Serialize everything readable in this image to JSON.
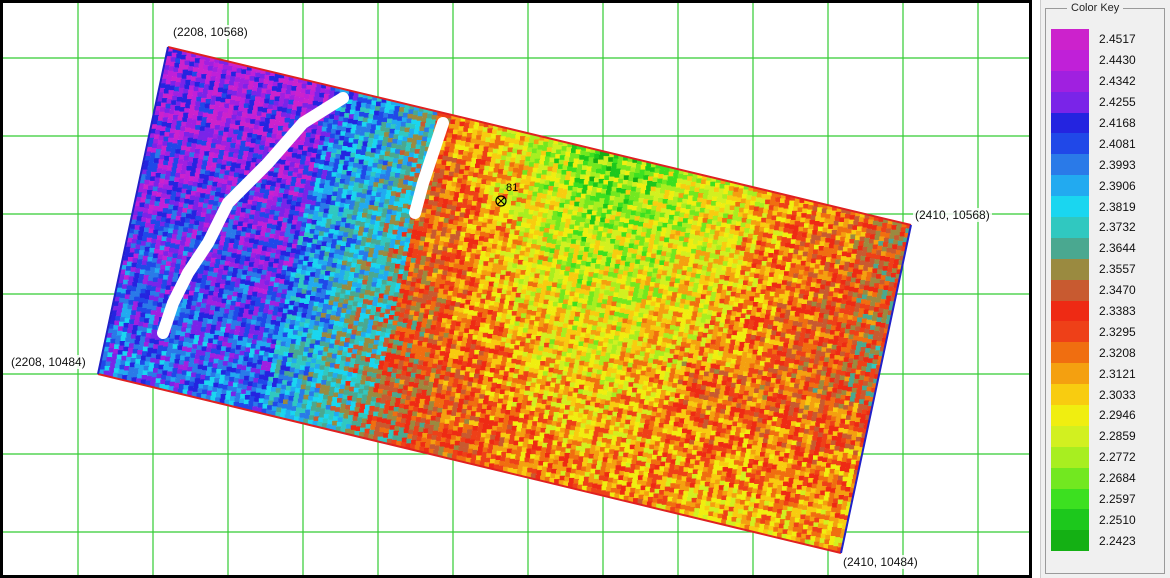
{
  "map": {
    "coords": [
      {
        "id": "nw",
        "label": "(2208, 10568)"
      },
      {
        "id": "ne",
        "label": "(2410, 10568)"
      },
      {
        "id": "sw",
        "label": "(2208, 10484)"
      },
      {
        "id": "se",
        "label": "(2410, 10484)"
      }
    ],
    "marker_label": "81",
    "grid_color": "#33cc33",
    "top_edge_color": "#e02020",
    "side_edge_color": "#2020c8"
  },
  "color_key": {
    "title": "Color Key",
    "entries": [
      {
        "value": "2.4517",
        "color": "#cc22cc"
      },
      {
        "value": "2.4430",
        "color": "#c020d8"
      },
      {
        "value": "2.4342",
        "color": "#a020e0"
      },
      {
        "value": "2.4255",
        "color": "#7a24e8"
      },
      {
        "value": "2.4168",
        "color": "#2424e0"
      },
      {
        "value": "2.4081",
        "color": "#2048e8"
      },
      {
        "value": "2.3993",
        "color": "#2a7ae8"
      },
      {
        "value": "2.3906",
        "color": "#22aaf0"
      },
      {
        "value": "2.3819",
        "color": "#1ad6f0"
      },
      {
        "value": "2.3732",
        "color": "#30c8c0"
      },
      {
        "value": "2.3644",
        "color": "#4aa890"
      },
      {
        "value": "2.3557",
        "color": "#9a8a40"
      },
      {
        "value": "2.3470",
        "color": "#c85a30"
      },
      {
        "value": "2.3383",
        "color": "#ee2a14"
      },
      {
        "value": "2.3295",
        "color": "#ee4018"
      },
      {
        "value": "2.3208",
        "color": "#f06e10"
      },
      {
        "value": "2.3121",
        "color": "#f4a010"
      },
      {
        "value": "2.3033",
        "color": "#f8cc10"
      },
      {
        "value": "2.2946",
        "color": "#f0ee10"
      },
      {
        "value": "2.2859",
        "color": "#d2f020"
      },
      {
        "value": "2.2772",
        "color": "#a8ee20"
      },
      {
        "value": "2.2684",
        "color": "#72e820"
      },
      {
        "value": "2.2597",
        "color": "#3ce020"
      },
      {
        "value": "2.2510",
        "color": "#1cc81c"
      },
      {
        "value": "2.2423",
        "color": "#14b014"
      }
    ]
  }
}
